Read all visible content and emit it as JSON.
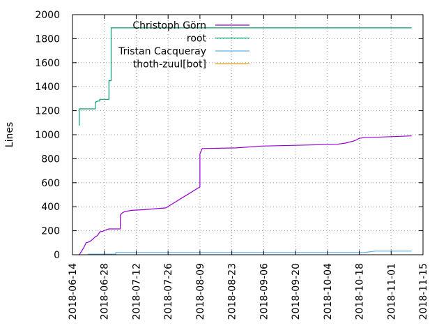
{
  "chart_data": {
    "type": "line",
    "title": "",
    "xlabel": "",
    "ylabel": "Lines",
    "ylim": [
      0,
      2000
    ],
    "xlim": [
      "2018-06-14",
      "2018-11-15"
    ],
    "grid": true,
    "legend_position": "top-left",
    "y_ticks": [
      0,
      200,
      400,
      600,
      800,
      1000,
      1200,
      1400,
      1600,
      1800,
      2000
    ],
    "x_ticks": [
      "2018-06-14",
      "2018-06-28",
      "2018-07-12",
      "2018-07-26",
      "2018-08-09",
      "2018-08-23",
      "2018-09-06",
      "2018-09-20",
      "2018-10-04",
      "2018-10-18",
      "2018-11-01",
      "2018-11-15"
    ],
    "series": [
      {
        "name": "Christoph Görn",
        "color": "#9400d3",
        "x": [
          "2018-06-17",
          "2018-06-18",
          "2018-06-19",
          "2018-06-20",
          "2018-06-21",
          "2018-06-22",
          "2018-06-23",
          "2018-06-24",
          "2018-06-25",
          "2018-06-26",
          "2018-06-27",
          "2018-06-28",
          "2018-06-29",
          "2018-06-30",
          "2018-07-02",
          "2018-07-05",
          "2018-07-05",
          "2018-07-06",
          "2018-07-07",
          "2018-07-10",
          "2018-07-15",
          "2018-07-25",
          "2018-08-09",
          "2018-08-09",
          "2018-08-10",
          "2018-08-25",
          "2018-09-05",
          "2018-10-08",
          "2018-10-12",
          "2018-10-16",
          "2018-10-18",
          "2018-10-20",
          "2018-11-10"
        ],
        "values": [
          0,
          30,
          60,
          100,
          105,
          115,
          130,
          150,
          160,
          190,
          195,
          200,
          210,
          215,
          215,
          215,
          330,
          350,
          360,
          370,
          375,
          390,
          565,
          840,
          885,
          890,
          905,
          920,
          930,
          950,
          970,
          975,
          990
        ]
      },
      {
        "name": "root",
        "color": "#009e73",
        "x": [
          "2018-06-17",
          "2018-06-17",
          "2018-06-20",
          "2018-06-24",
          "2018-06-24",
          "2018-06-25",
          "2018-06-26",
          "2018-06-26",
          "2018-06-28",
          "2018-06-30",
          "2018-06-30",
          "2018-06-30",
          "2018-07-01",
          "2018-07-01",
          "2018-11-10"
        ],
        "values": [
          1075,
          1215,
          1215,
          1215,
          1270,
          1280,
          1280,
          1295,
          1295,
          1295,
          1430,
          1450,
          1450,
          1890,
          1890
        ]
      },
      {
        "name": "Tristan Cacqueray",
        "color": "#56b4e9",
        "x": [
          "2018-06-21",
          "2018-06-21",
          "2018-07-03",
          "2018-07-03",
          "2018-10-20",
          "2018-10-25",
          "2018-11-10"
        ],
        "values": [
          0,
          5,
          5,
          18,
          18,
          30,
          30
        ]
      },
      {
        "name": "thoth-zuul[bot]",
        "color": "#e69f00",
        "x": [],
        "values": []
      }
    ]
  }
}
